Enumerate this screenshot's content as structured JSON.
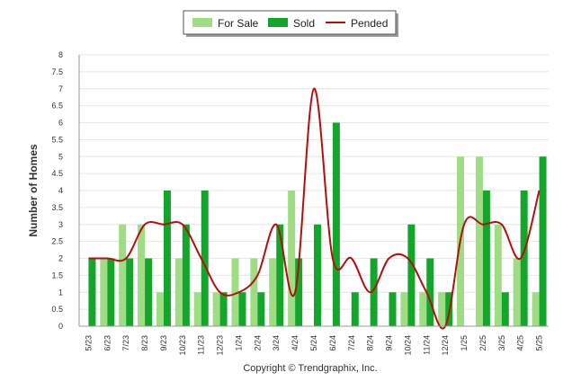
{
  "chart_data": {
    "type": "bar",
    "categories": [
      "5/23",
      "6/23",
      "7/23",
      "8/23",
      "9/23",
      "10/23",
      "11/23",
      "12/23",
      "1/24",
      "2/24",
      "3/24",
      "4/24",
      "5/24",
      "6/24",
      "7/24",
      "8/24",
      "9/24",
      "10/24",
      "11/24",
      "12/24",
      "1/25",
      "2/25",
      "3/25",
      "4/25",
      "5/25"
    ],
    "series": [
      {
        "name": "For Sale",
        "kind": "bar",
        "color": "#9fdd85",
        "values": [
          0,
          2,
          3,
          3,
          1,
          2,
          1,
          1,
          2,
          2,
          2,
          4,
          0,
          0,
          0,
          0,
          0,
          1,
          1,
          1,
          5,
          5,
          3,
          2,
          1
        ]
      },
      {
        "name": "Sold",
        "kind": "bar",
        "color": "#14a62a",
        "values": [
          2,
          2,
          2,
          2,
          4,
          3,
          4,
          1,
          1,
          1,
          3,
          2,
          3,
          6,
          1,
          2,
          1,
          3,
          2,
          1,
          0,
          4,
          1,
          4,
          5
        ]
      },
      {
        "name": "Pended",
        "kind": "line",
        "color": "#b40f0f",
        "values": [
          2,
          2,
          2,
          3,
          3,
          3,
          2,
          1,
          1,
          1.5,
          3,
          1,
          7,
          2,
          2,
          1,
          2,
          2,
          1,
          0,
          3,
          3,
          3,
          2,
          4
        ]
      }
    ],
    "xlabel": "",
    "ylabel": "Number of Homes",
    "ylim": [
      0,
      8
    ],
    "yticks": [
      "0",
      "0.5",
      "1",
      "1.5",
      "2",
      "2.5",
      "3",
      "3.5",
      "4",
      "4.5",
      "5",
      "5.5",
      "6",
      "6.5",
      "7",
      "7.5",
      "8"
    ],
    "grid": true,
    "legend_position": "top-center",
    "footer": "Copyright © Trendgraphix, Inc."
  }
}
